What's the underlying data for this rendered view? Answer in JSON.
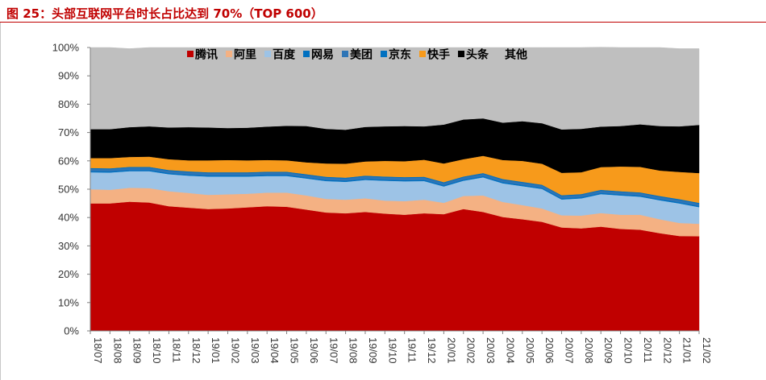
{
  "figure_title": "图 25：头部互联网平台时长占比达到 70%（TOP 600）",
  "colors": {
    "title": "#c00000",
    "series": [
      "#c00000",
      "#f4b183",
      "#9dc3e6",
      "#0070c0",
      "#2e75b6",
      "#0070c0",
      "#f79a1b",
      "#000000",
      "#bfbfbf"
    ]
  },
  "chart_data": {
    "type": "area",
    "stacked": true,
    "title": "",
    "xlabel": "",
    "ylabel": "",
    "ylim": [
      0,
      100
    ],
    "y_ticks": [
      "0%",
      "10%",
      "20%",
      "30%",
      "40%",
      "50%",
      "60%",
      "70%",
      "80%",
      "90%",
      "100%"
    ],
    "legend_placement": "top",
    "x": [
      "18/07",
      "18/08",
      "18/09",
      "18/10",
      "18/11",
      "18/12",
      "19/01",
      "19/02",
      "19/03",
      "19/04",
      "19/05",
      "19/06",
      "19/07",
      "19/08",
      "19/09",
      "19/10",
      "19/11",
      "19/12",
      "20/01",
      "20/02",
      "20/03",
      "20/04",
      "20/05",
      "20/06",
      "20/07",
      "20/08",
      "20/09",
      "20/10",
      "20/11",
      "20/12",
      "21/01",
      "21/02"
    ],
    "series": [
      {
        "name": "腾讯",
        "values": [
          45.0,
          45.0,
          45.6,
          45.3,
          44.0,
          43.5,
          43.0,
          43.2,
          43.6,
          44.0,
          43.8,
          42.8,
          41.8,
          41.5,
          42.0,
          41.4,
          41.0,
          41.5,
          41.2,
          43.0,
          42.0,
          40.2,
          39.4,
          38.5,
          36.5,
          36.2,
          36.8,
          36.0,
          35.7,
          34.5,
          33.5,
          33.4
        ]
      },
      {
        "name": "阿里",
        "values": [
          5.0,
          4.8,
          4.9,
          5.1,
          5.3,
          5.2,
          5.0,
          5.0,
          4.8,
          4.8,
          5.0,
          5.0,
          4.8,
          4.8,
          4.8,
          4.6,
          4.8,
          4.8,
          4.0,
          4.6,
          5.8,
          5.3,
          5.0,
          4.7,
          4.3,
          4.5,
          4.8,
          5.0,
          5.3,
          4.9,
          4.6,
          4.4
        ]
      },
      {
        "name": "百度",
        "values": [
          6.0,
          6.1,
          5.9,
          6.0,
          6.0,
          6.1,
          6.5,
          6.3,
          6.1,
          5.9,
          5.9,
          6.0,
          6.3,
          6.3,
          6.5,
          7.0,
          7.0,
          6.6,
          5.8,
          5.4,
          6.4,
          6.6,
          6.7,
          6.9,
          5.6,
          6.1,
          6.7,
          6.8,
          6.4,
          6.7,
          6.9,
          5.9
        ]
      },
      {
        "name": "网易",
        "values": [
          0.4,
          0.4,
          0.4,
          0.4,
          0.4,
          0.4,
          0.4,
          0.4,
          0.4,
          0.4,
          0.4,
          0.4,
          0.4,
          0.4,
          0.4,
          0.4,
          0.4,
          0.4,
          0.4,
          0.4,
          0.4,
          0.4,
          0.4,
          0.4,
          0.4,
          0.4,
          0.4,
          0.4,
          0.4,
          0.4,
          0.4,
          0.4
        ]
      },
      {
        "name": "美团",
        "values": [
          0.8,
          0.8,
          0.8,
          0.8,
          0.8,
          0.8,
          0.8,
          0.8,
          0.8,
          0.8,
          0.8,
          0.8,
          0.8,
          0.8,
          0.8,
          0.8,
          0.8,
          0.8,
          0.8,
          0.8,
          0.8,
          0.8,
          0.8,
          0.8,
          0.8,
          0.8,
          0.8,
          0.8,
          0.8,
          0.8,
          0.8,
          0.8
        ]
      },
      {
        "name": "京东",
        "values": [
          0.3,
          0.3,
          0.3,
          0.3,
          0.3,
          0.3,
          0.3,
          0.3,
          0.3,
          0.3,
          0.3,
          0.3,
          0.3,
          0.3,
          0.3,
          0.3,
          0.3,
          0.3,
          0.3,
          0.3,
          0.3,
          0.3,
          0.3,
          0.3,
          0.3,
          0.3,
          0.3,
          0.3,
          0.3,
          0.3,
          0.3,
          0.3
        ]
      },
      {
        "name": "快手",
        "values": [
          3.5,
          3.6,
          3.5,
          3.6,
          3.8,
          3.9,
          4.2,
          4.3,
          4.2,
          4.1,
          4.0,
          4.2,
          4.7,
          4.9,
          5.0,
          5.5,
          5.6,
          6.0,
          6.6,
          6.1,
          6.1,
          6.7,
          7.4,
          7.4,
          7.9,
          7.7,
          8.0,
          8.7,
          9.0,
          9.0,
          9.6,
          10.5
        ]
      },
      {
        "name": "头条",
        "values": [
          10.2,
          10.2,
          10.5,
          10.7,
          11.2,
          11.7,
          11.6,
          11.3,
          11.5,
          11.8,
          12.2,
          12.8,
          12.2,
          12.0,
          12.2,
          12.2,
          12.4,
          11.8,
          13.7,
          14.0,
          13.2,
          13.2,
          14.0,
          14.3,
          15.3,
          15.3,
          14.3,
          14.3,
          15.0,
          15.7,
          16.1,
          17.0
        ]
      },
      {
        "name": "其他",
        "values": [
          28.8,
          28.8,
          27.7,
          27.8,
          28.2,
          28.1,
          28.2,
          28.4,
          28.3,
          27.9,
          27.6,
          27.7,
          28.7,
          29.0,
          28.0,
          27.8,
          27.7,
          27.8,
          27.2,
          25.4,
          25.0,
          26.5,
          26.0,
          26.7,
          28.9,
          28.7,
          28.0,
          27.7,
          27.1,
          27.7,
          27.4,
          26.9
        ]
      }
    ]
  }
}
